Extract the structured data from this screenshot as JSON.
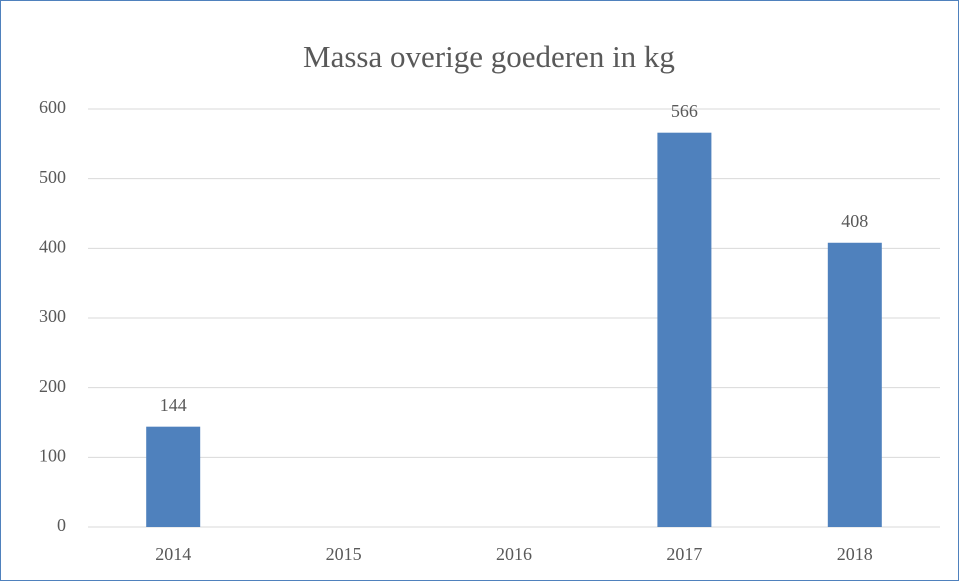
{
  "chart_data": {
    "type": "bar",
    "title": "Massa overige goederen in kg",
    "categories": [
      "2014",
      "2015",
      "2016",
      "2017",
      "2018"
    ],
    "values": [
      144,
      null,
      null,
      566,
      408
    ],
    "color": "#4f81bd",
    "ylim": [
      0,
      600
    ],
    "yticks": [
      0,
      100,
      200,
      300,
      400,
      500,
      600
    ],
    "grid": true
  }
}
